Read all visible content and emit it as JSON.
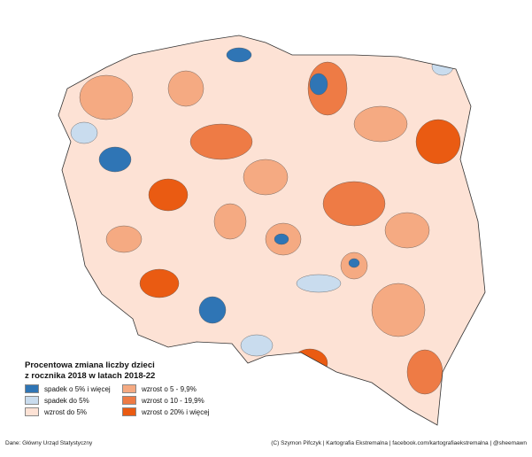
{
  "legend": {
    "title": [
      "Procentowa zmiana liczby dzieci",
      "z rocznika 2018 w latach 2018-22"
    ],
    "items": [
      {
        "label": "spadek o 5% i więcej",
        "color": "#2f75b5"
      },
      {
        "label": "wzrost o 5 - 9,9%",
        "color": "#f5aa82"
      },
      {
        "label": "spadek do 5%",
        "color": "#c9dcee"
      },
      {
        "label": "wzrost o 10 - 19,9%",
        "color": "#ee7b45"
      },
      {
        "label": "wzrost do 5%",
        "color": "#fde2d5"
      },
      {
        "label": "wzrost o 20% i więcej",
        "color": "#ea5b12"
      }
    ]
  },
  "footer": {
    "source": "Dane: Główny Urząd Statystyczny",
    "credits": "(C) Szymon Pifczyk | Kartografia Ekstremalna | facebook.com/kartografiaekstremalna | @sheemawn"
  }
}
